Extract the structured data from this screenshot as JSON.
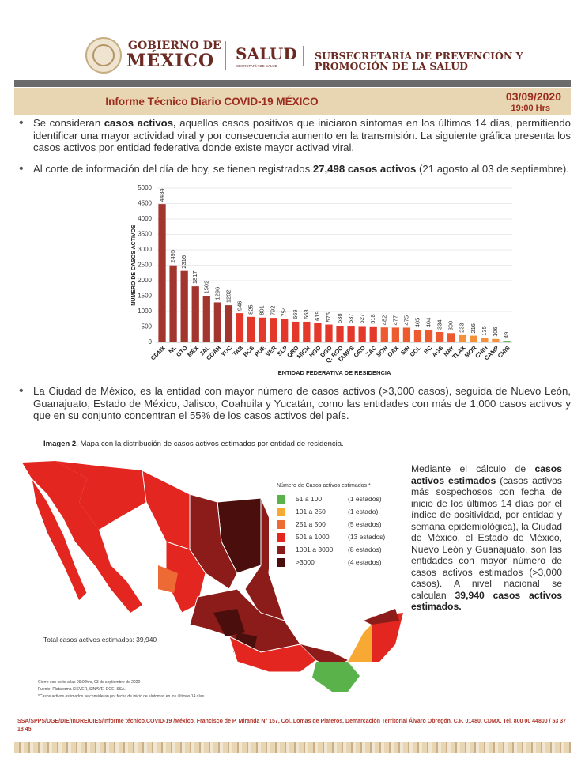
{
  "header": {
    "gob_line1": "GOBIERNO DE",
    "gob_line2": "MÉXICO",
    "salud": "SALUD",
    "salud_sub": "SECRETARÍA DE SALUD",
    "sub_line1": "SUBSECRETARÍA DE PREVENCIÓN Y",
    "sub_line2": "PROMOCIÓN DE LA SALUD"
  },
  "band": {
    "title": "Informe Técnico Diario COVID-19 MÉXICO",
    "date": "03/09/2020",
    "time": "19:00 Hrs"
  },
  "bullets": [
    [
      {
        "text": "Se consideran ",
        "bold": false
      },
      {
        "text": "casos activos,",
        "bold": true
      },
      {
        "text": " aquellos casos positivos que iniciaron síntomas en los últimos 14 días, permitiendo identificar una mayor actividad viral y por consecuencia aumento en la transmisión. La siguiente gráfica presenta los casos activos por entidad federativa donde existe mayor activad viral.",
        "bold": false
      }
    ],
    [
      {
        "text": "Al corte de información del día de hoy, se tienen registrados ",
        "bold": false
      },
      {
        "text": "27,498 casos activos",
        "bold": true
      },
      {
        "text": " (21 agosto al 03 de septiembre).",
        "bold": false
      }
    ],
    [
      {
        "text": "La Ciudad de México, es la entidad con mayor número de casos activos (>3,000 casos), seguida de Nuevo León, Guanajuato, Estado de México, Jalisco, Coahuila y Yucatán, como las entidades con más de 1,000 casos activos y que en su conjunto concentran el 55% de los casos activos del país.",
        "bold": false
      }
    ]
  ],
  "chart_data": {
    "type": "bar",
    "x_label": "ENTIDAD FEDERATIVA DE RESIDENCIA",
    "y_label": "NÚMERO DE CASOS ACTIVOS",
    "categories": [
      "CDMX",
      "NL",
      "GTO",
      "MEX",
      "JAL",
      "COAH",
      "YUC",
      "TAB",
      "BCS",
      "PUE",
      "VER",
      "SLP",
      "QRO",
      "MICH",
      "HGO",
      "DGO",
      "Q. ROO",
      "TAMPS",
      "GRO",
      "ZAC",
      "SON",
      "OAX",
      "SIN",
      "COL",
      "BC",
      "AGS",
      "NAY",
      "TLAX",
      "MOR",
      "CHIH",
      "CAMP",
      "CHIS"
    ],
    "values": [
      4484,
      2495,
      2316,
      1817,
      1502,
      1296,
      1202,
      946,
      825,
      801,
      792,
      754,
      669,
      668,
      619,
      576,
      538,
      537,
      527,
      518,
      482,
      477,
      475,
      405,
      404,
      334,
      300,
      233,
      216,
      135,
      106,
      49
    ],
    "colors": [
      "#a3352f",
      "#a3352f",
      "#a3352f",
      "#a3352f",
      "#a3352f",
      "#a3352f",
      "#a3352f",
      "#e4382b",
      "#e4382b",
      "#e4382b",
      "#e4382b",
      "#e4382b",
      "#e4382b",
      "#e4382b",
      "#e4382b",
      "#e4382b",
      "#e4382b",
      "#e4382b",
      "#e4382b",
      "#e4382b",
      "#ee5a2f",
      "#ee5a2f",
      "#ee5a2f",
      "#ee5a2f",
      "#ee5a2f",
      "#ee5a2f",
      "#ee5a2f",
      "#f5913a",
      "#f5913a",
      "#f5913a",
      "#f5913a",
      "#5ab24a"
    ],
    "ylim": [
      0,
      5000
    ],
    "yticks": [
      0,
      500,
      1000,
      1500,
      2000,
      2500,
      3000,
      3500,
      4000,
      4500,
      5000
    ],
    "grid": true
  },
  "caption": [
    {
      "text": "Imagen 2.",
      "bold": true
    },
    {
      "text": " Mapa con la distribución de casos activos estimados por entidad de residencia.",
      "bold": false
    }
  ],
  "map": {
    "legend_title": "Número de Casos activos estimados *",
    "legend": [
      {
        "range": "51 a 100",
        "count": "(1 estados)",
        "color": "#5ab24a"
      },
      {
        "range": "101 a 250",
        "count": "(1 estado)",
        "color": "#f7a934"
      },
      {
        "range": "251 a 500",
        "count": "(5 estados)",
        "color": "#ee6a35"
      },
      {
        "range": "501 a 1000",
        "count": "(13 estados)",
        "color": "#e3261f"
      },
      {
        "range": "1001 a 3000",
        "count": "(8 estados)",
        "color": "#8c1c19"
      },
      {
        "range": ">3000",
        "count": "(4 estados)",
        "color": "#4a0f0d"
      }
    ],
    "total": "Total casos activos estimados: 39,940",
    "notes": [
      "Cierre con corte a las 09:00hrs, 03 de septiembre de 2020",
      "Fuente: Plataforma SISVER, SINAVE, DGE, SSA.",
      "*Casos activos estimados se consideran por fecha de inicio de síntomas en los últimos 14 días."
    ]
  },
  "side_text": [
    {
      "text": "Mediante el cálculo de ",
      "bold": false
    },
    {
      "text": "casos activos estimados",
      "bold": true
    },
    {
      "text": " (casos activos más sospechosos con fecha de inicio de los últimos 14 días por el índice de positividad, por entidad y semana epidemiológica), la Ciudad de México, el Estado de México, Nuevo León y Guanajuato, son las entidades con mayor número de casos activos estimados (>3,000 casos). A nivel nacional se calculan ",
      "bold": false
    },
    {
      "text": "39,940 casos activos estimados.",
      "bold": true
    }
  ],
  "footer": "SSA/SPPS/DGE/DIE/InDRE/UIES/Informe técnico.COVID-19 /México. Francisco de P. Miranda N° 157, Col. Lomas de Plateros, Demarcación Territorial Álvaro Obregón, C.P. 01480. CDMX. Tel. 800 00 44800 / 53 37 18 45."
}
